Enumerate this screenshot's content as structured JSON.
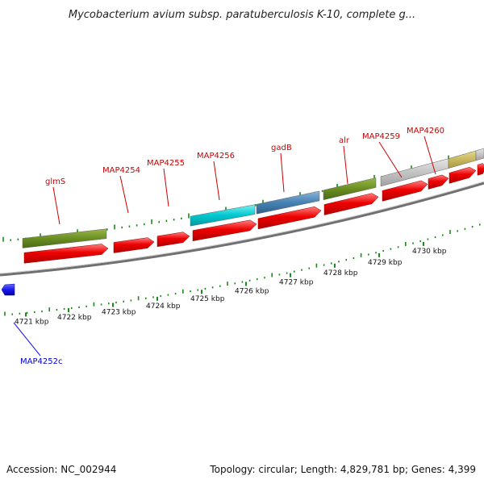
{
  "title": "Mycobacterium avium subsp. paratuberculosis K-10, complete g...",
  "accession": "Accession: NC_002944",
  "topology": "Topology: circular; Length: 4,829,781 bp; Genes: 4,399",
  "colors": {
    "forward_gene": "#ee0000",
    "reverse_gene": "#1a1aee",
    "backbone": "#8a8a8a",
    "tick": "#1a8a1a",
    "feature_olive": "#6b8e23",
    "feature_cyan": "#00c8d0",
    "feature_steelblue": "#4682b4",
    "feature_gray": "#c0c0c0",
    "feature_khaki": "#c8b860"
  },
  "gene_labels": [
    "glmS",
    "MAP4254",
    "MAP4255",
    "MAP4256",
    "gadB",
    "alr",
    "MAP4259",
    "MAP4260"
  ],
  "reverse_gene_labels": [
    "MAP4252c"
  ],
  "kbp_labels": [
    "4721 kbp",
    "4722 kbp",
    "4723 kbp",
    "4724 kbp",
    "4725 kbp",
    "4726 kbp",
    "4727 kbp",
    "4728 kbp",
    "4729 kbp",
    "4730 kbp"
  ]
}
